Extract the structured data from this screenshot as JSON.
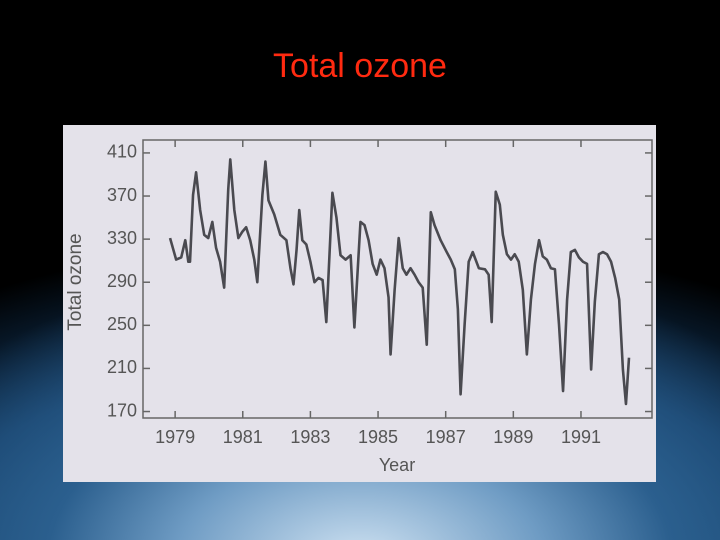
{
  "chart_data": {
    "type": "line",
    "title": "Total ozone",
    "x_label": "Year",
    "y_label": "Total ozone",
    "x": [
      1978.85,
      1979.03,
      1979.18,
      1979.3,
      1979.39,
      1979.44,
      1979.53,
      1979.62,
      1979.74,
      1979.86,
      1979.98,
      1980.1,
      1980.21,
      1980.33,
      1980.45,
      1980.57,
      1980.63,
      1980.75,
      1980.87,
      1980.99,
      1981.1,
      1981.22,
      1981.34,
      1981.43,
      1981.58,
      1981.67,
      1981.76,
      1981.93,
      1982.11,
      1982.29,
      1982.41,
      1982.5,
      1982.59,
      1982.67,
      1982.76,
      1982.88,
      1983,
      1983.12,
      1983.24,
      1983.36,
      1983.47,
      1983.65,
      1983.77,
      1983.89,
      1984.04,
      1984.19,
      1984.3,
      1984.48,
      1984.6,
      1984.72,
      1984.84,
      1984.96,
      1985.07,
      1985.19,
      1985.31,
      1985.37,
      1985.49,
      1985.61,
      1985.73,
      1985.84,
      1985.96,
      1986.08,
      1986.2,
      1986.32,
      1986.44,
      1986.56,
      1986.67,
      1986.85,
      1987.03,
      1987.15,
      1987.27,
      1987.36,
      1987.44,
      1987.56,
      1987.68,
      1987.8,
      1987.98,
      1988.16,
      1988.27,
      1988.36,
      1988.48,
      1988.6,
      1988.69,
      1988.81,
      1988.93,
      1989.04,
      1989.16,
      1989.28,
      1989.4,
      1989.52,
      1989.64,
      1989.76,
      1989.87,
      1989.99,
      1990.11,
      1990.23,
      1990.35,
      1990.47,
      1990.59,
      1990.7,
      1990.82,
      1990.94,
      1991.06,
      1991.18,
      1991.3,
      1991.41,
      1991.53,
      1991.65,
      1991.77,
      1991.89,
      1992.01,
      1992.13,
      1992.24,
      1992.33,
      1992.42
    ],
    "series": [
      {
        "name": "Total ozone",
        "color": "#4a4a50",
        "values": [
          331,
          311,
          313,
          329,
          309,
          309,
          371,
          392,
          357,
          334,
          331,
          346,
          322,
          309,
          285,
          376,
          404,
          357,
          331,
          337,
          341,
          329,
          311,
          290,
          371,
          402,
          366,
          353,
          334,
          329,
          303,
          288,
          320,
          357,
          329,
          325,
          309,
          290,
          294,
          292,
          253,
          373,
          350,
          315,
          311,
          315,
          248,
          346,
          343,
          329,
          307,
          297,
          311,
          303,
          276,
          223,
          283,
          331,
          303,
          297,
          303,
          297,
          290,
          285,
          232,
          355,
          343,
          329,
          318,
          311,
          302,
          265,
          186,
          251,
          309,
          318,
          303,
          302,
          297,
          253,
          374,
          362,
          334,
          316,
          311,
          316,
          309,
          283,
          223,
          274,
          307,
          329,
          314,
          311,
          303,
          302,
          251,
          189,
          274,
          318,
          320,
          313,
          309,
          307,
          209,
          272,
          316,
          318,
          316,
          309,
          294,
          274,
          209,
          177,
          220
        ]
      }
    ],
    "xlim": [
      1978.05,
      1993.1
    ],
    "ylim": [
      164,
      422
    ],
    "xticks": [
      1979,
      1981,
      1983,
      1985,
      1987,
      1989,
      1991
    ],
    "yticks": [
      170,
      210,
      250,
      290,
      330,
      370,
      410
    ]
  }
}
